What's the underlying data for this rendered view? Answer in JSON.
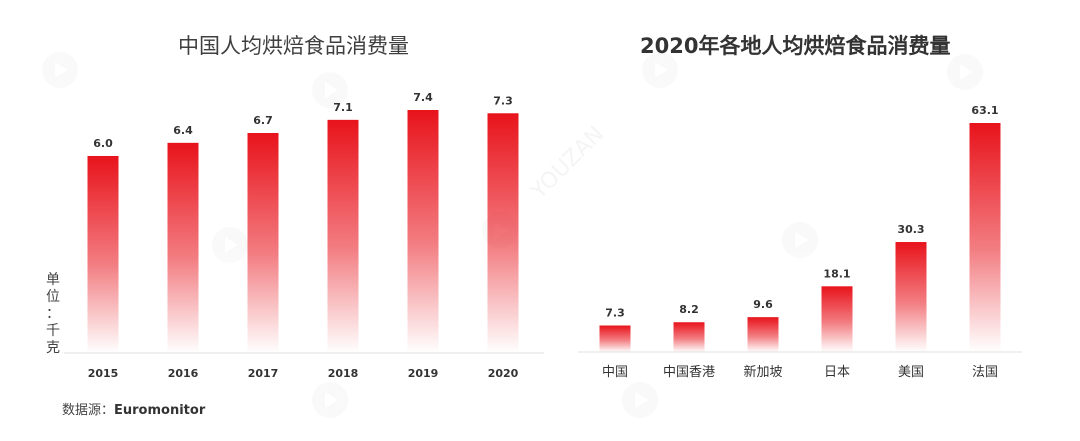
{
  "chart_data": [
    {
      "type": "bar",
      "title": "中国人均烘焙食品消费量",
      "categories": [
        "2015",
        "2016",
        "2017",
        "2018",
        "2019",
        "2020"
      ],
      "values": [
        6.0,
        6.4,
        6.7,
        7.1,
        7.4,
        7.3
      ],
      "value_labels": [
        "6.0",
        "6.4",
        "6.7",
        "7.1",
        "7.4",
        "7.3"
      ],
      "ylabel": "单位：千克",
      "ylim": [
        0,
        7.4
      ],
      "grid": false,
      "color": "#e8131b"
    },
    {
      "type": "bar",
      "title": "2020年各地人均烘焙食品消费量",
      "categories": [
        "中国",
        "中国香港",
        "新加坡",
        "日本",
        "美国",
        "法国"
      ],
      "values": [
        7.3,
        8.2,
        9.6,
        18.1,
        30.3,
        63.1
      ],
      "value_labels": [
        "7.3",
        "8.2",
        "9.6",
        "18.1",
        "30.3",
        "63.1"
      ],
      "ylim": [
        0,
        63.1
      ],
      "grid": false,
      "color": "#e8131b"
    }
  ],
  "unit_chars": [
    "单",
    "位",
    "：",
    "千",
    "克"
  ],
  "source": {
    "prefix": "数据源：",
    "value": "Euromonitor"
  },
  "watermark": {
    "text": "YOUZAN",
    "icon": "play-icon"
  }
}
